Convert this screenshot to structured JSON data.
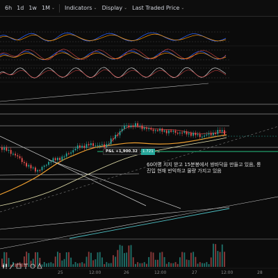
{
  "toolbar": {
    "items": [
      {
        "label": "6h"
      },
      {
        "label": "1d"
      },
      {
        "label": "1w"
      },
      {
        "label": "1M"
      },
      {
        "label": "Indicators"
      },
      {
        "label": "Display"
      },
      {
        "label": "Last Traded Price"
      }
    ],
    "chevron": "⌄"
  },
  "position": {
    "pnl_label": "P&L +1,900.32",
    "quantity": "1.721",
    "close": "×"
  },
  "annotation": {
    "text": "60이평 지지 받고 15분봉에서 쌍바닥을 만들고 있음, 롱진입 현재 반익하고 물량 가지고 있음"
  },
  "time_axis": {
    "labels": [
      "25",
      "12:00",
      "26",
      "12:00",
      "27",
      "12:00",
      "28"
    ]
  },
  "colors": {
    "background": "#0b0b0b",
    "up": "#26a69a",
    "down": "#ef5350",
    "ma_fast": "#f0a030",
    "ma_slow": "#e9e5b0",
    "entry_line": "#26c281"
  },
  "icons": [
    "candles-icon",
    "pen-icon",
    "ruler-icon",
    "text-icon",
    "smile-icon",
    "shapes-icon"
  ]
}
